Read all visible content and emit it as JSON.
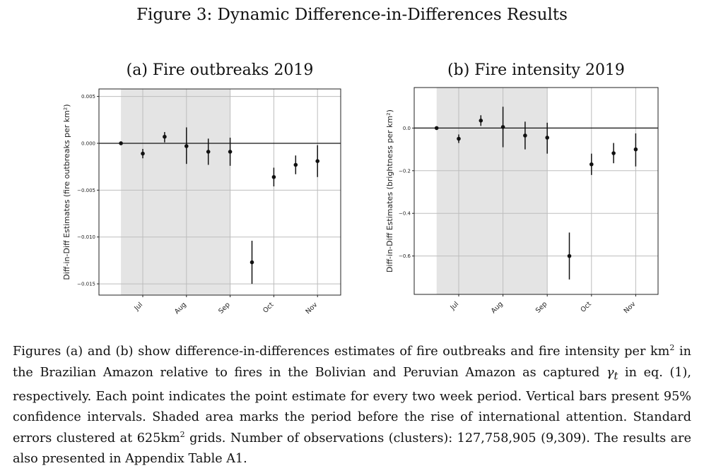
{
  "figure": {
    "title": "Figure 3: Dynamic Difference-in-Differences Results"
  },
  "panels": [
    {
      "title": "(a) Fire outbreaks 2019",
      "ylabel": "Diff-in-Diff Estimates (fire outbreaks per km²)",
      "ytick_labels": [
        "0.005",
        "0.000",
        "−0.005",
        "−0.010",
        "−0.015"
      ],
      "xtick_labels": [
        "Jul",
        "Aug",
        "Sep",
        "Oct",
        "Nov"
      ]
    },
    {
      "title": "(b) Fire intensity 2019",
      "ylabel": "Diff-in-Diff Estimates (brightness per km²)",
      "ytick_labels": [
        "0.0",
        "−0.2",
        "−0.4",
        "−0.6"
      ],
      "xtick_labels": [
        "Jul",
        "Aug",
        "Sep",
        "Oct",
        "Nov"
      ]
    }
  ],
  "chart_data": [
    {
      "type": "scatter",
      "title": "(a) Fire outbreaks 2019",
      "xlabel": "",
      "ylabel": "Diff-in-Diff Estimates (fire outbreaks per km²)",
      "x_months": [
        "Jul",
        "Aug",
        "Sep",
        "Oct",
        "Nov"
      ],
      "ylim": [
        -0.0162,
        0.0058
      ],
      "yticks": [
        0.005,
        0.0,
        -0.005,
        -0.01,
        -0.015
      ],
      "grid": true,
      "reference_line": 0.0,
      "shaded_period_months": [
        -0.5,
        1.5
      ],
      "points": [
        {
          "x": -0.5,
          "y": 0.0,
          "lo": 0.0,
          "hi": 0.0
        },
        {
          "x": 0.0,
          "y": -0.0011,
          "lo": -0.0016,
          "hi": -0.0006
        },
        {
          "x": 0.5,
          "y": 0.0007,
          "lo": 0.0001,
          "hi": 0.0012
        },
        {
          "x": 1.0,
          "y": -0.0003,
          "lo": -0.0022,
          "hi": 0.0017
        },
        {
          "x": 1.5,
          "y": -0.0009,
          "lo": -0.0023,
          "hi": 0.0005
        },
        {
          "x": 2.0,
          "y": -0.0009,
          "lo": -0.0024,
          "hi": 0.0006
        },
        {
          "x": 2.5,
          "y": -0.0127,
          "lo": -0.015,
          "hi": -0.0104
        },
        {
          "x": 3.0,
          "y": -0.0036,
          "lo": -0.0046,
          "hi": -0.0026
        },
        {
          "x": 3.5,
          "y": -0.0023,
          "lo": -0.0033,
          "hi": -0.0013
        },
        {
          "x": 4.0,
          "y": -0.0019,
          "lo": -0.0036,
          "hi": -0.0002
        }
      ]
    },
    {
      "type": "scatter",
      "title": "(b) Fire intensity 2019",
      "xlabel": "",
      "ylabel": "Diff-in-Diff Estimates (brightness per km²)",
      "x_months": [
        "Jul",
        "Aug",
        "Sep",
        "Oct",
        "Nov"
      ],
      "ylim": [
        -0.78,
        0.19
      ],
      "yticks": [
        0.0,
        -0.2,
        -0.4,
        -0.6
      ],
      "grid": true,
      "reference_line": 0.0,
      "shaded_period_months": [
        -0.5,
        1.5
      ],
      "points": [
        {
          "x": -0.5,
          "y": 0.0,
          "lo": 0.0,
          "hi": 0.0
        },
        {
          "x": 0.0,
          "y": -0.05,
          "lo": -0.07,
          "hi": -0.03
        },
        {
          "x": 0.5,
          "y": 0.035,
          "lo": 0.01,
          "hi": 0.06
        },
        {
          "x": 1.0,
          "y": 0.005,
          "lo": -0.09,
          "hi": 0.1
        },
        {
          "x": 1.5,
          "y": -0.035,
          "lo": -0.1,
          "hi": 0.03
        },
        {
          "x": 2.0,
          "y": -0.045,
          "lo": -0.12,
          "hi": 0.025
        },
        {
          "x": 2.5,
          "y": -0.6,
          "lo": -0.71,
          "hi": -0.49
        },
        {
          "x": 3.0,
          "y": -0.17,
          "lo": -0.22,
          "hi": -0.12
        },
        {
          "x": 3.5,
          "y": -0.118,
          "lo": -0.165,
          "hi": -0.07
        },
        {
          "x": 4.0,
          "y": -0.1,
          "lo": -0.18,
          "hi": -0.025
        }
      ]
    }
  ],
  "caption": {
    "p1": "Figures (a) and (b) show difference-in-differences estimates of fire outbreaks and fire intensity per km",
    "p1_sup": "2",
    "p2": " in the Brazilian Amazon relative to fires in the Bolivian and Peruvian Amazon as captured ",
    "gamma": "γ",
    "gamma_sub": "t",
    "p3": " in eq.  (1), respectively. Each point indicates the point estimate for every two week period. Vertical bars present 95% confidence intervals.  Shaded area marks the period before the rise of international attention.  Standard errors clustered at 625km",
    "p3_sup": "2",
    "p4": " grids.  Number of observations (clusters):  127,758,905 (9,309).  The results are also presented in Appendix Table A1."
  }
}
